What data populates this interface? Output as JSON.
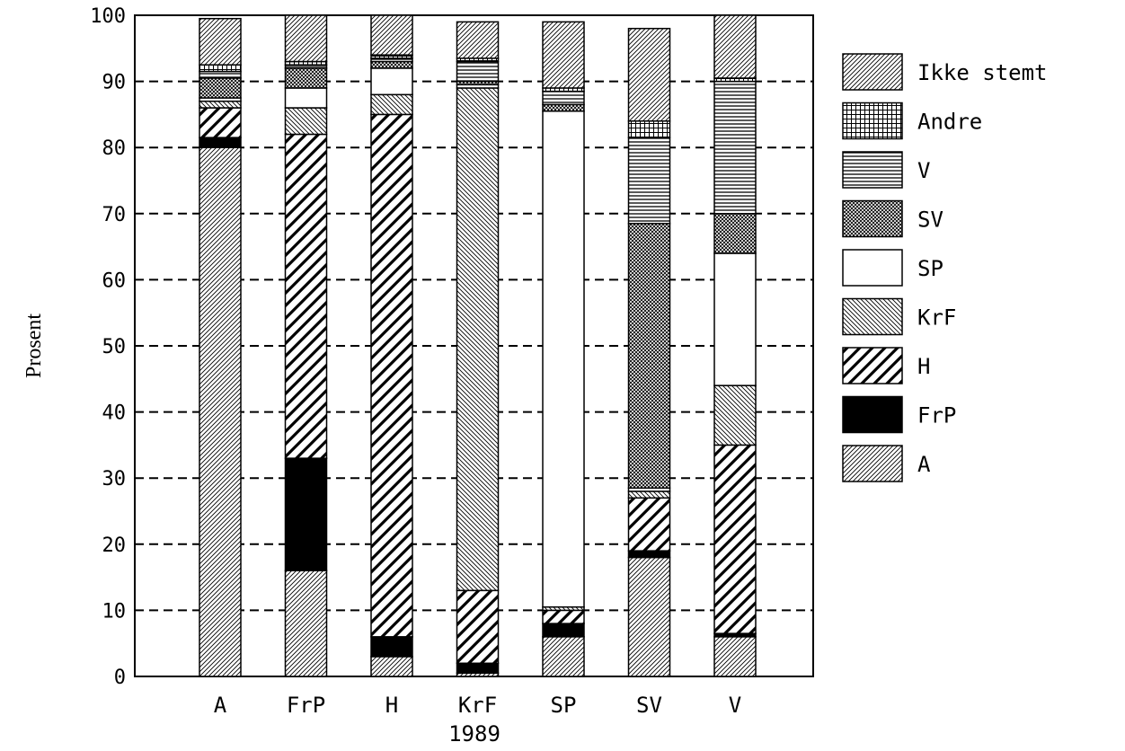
{
  "chart_data": {
    "type": "bar",
    "stacked": true,
    "title": "",
    "xlabel": "1989",
    "ylabel": "Prosent",
    "ylim": [
      0,
      100
    ],
    "yticks": [
      0,
      10,
      20,
      30,
      40,
      50,
      60,
      70,
      80,
      90,
      100
    ],
    "grid": "horizontal dashed",
    "legend_position": "right",
    "categories": [
      "A",
      "FrP",
      "H",
      "KrF",
      "SP",
      "SV",
      "V"
    ],
    "series": [
      {
        "name": "A",
        "pattern": "diag-fine",
        "values": [
          80,
          16,
          3,
          0.5,
          6,
          18,
          6
        ]
      },
      {
        "name": "FrP",
        "pattern": "solid-black",
        "values": [
          1.5,
          17,
          3,
          1.5,
          2,
          1,
          0.5
        ]
      },
      {
        "name": "H",
        "pattern": "diag-wide",
        "values": [
          4.5,
          49,
          79,
          11,
          2,
          8,
          28.5
        ]
      },
      {
        "name": "KrF",
        "pattern": "diag-back",
        "values": [
          1,
          4,
          3,
          76,
          0.5,
          1,
          9
        ]
      },
      {
        "name": "SP",
        "pattern": "white",
        "values": [
          0.5,
          3,
          4,
          0.5,
          75,
          0.5,
          20
        ]
      },
      {
        "name": "SV",
        "pattern": "crosshatch",
        "values": [
          3,
          3,
          1,
          0.5,
          1,
          40,
          6
        ]
      },
      {
        "name": "V",
        "pattern": "horizontal-lines",
        "values": [
          1,
          0.5,
          0.5,
          3,
          2,
          13,
          20
        ]
      },
      {
        "name": "Andre",
        "pattern": "grid",
        "values": [
          1,
          0.5,
          0.5,
          0.5,
          0.5,
          2.5,
          0.5
        ]
      },
      {
        "name": "Ikke stemt",
        "pattern": "diag-fine",
        "values": [
          7,
          7,
          6,
          5.5,
          10,
          14,
          9.5
        ]
      }
    ],
    "legend_order": [
      "Ikke stemt",
      "Andre",
      "V",
      "SV",
      "SP",
      "KrF",
      "H",
      "FrP",
      "A"
    ]
  }
}
